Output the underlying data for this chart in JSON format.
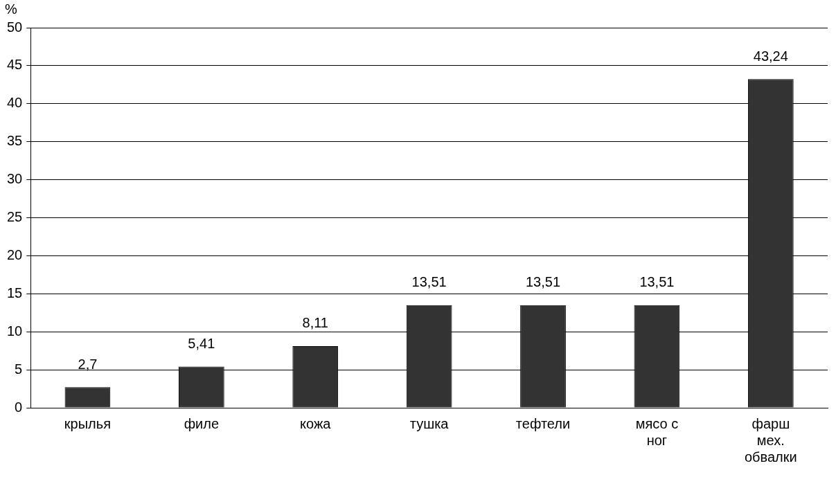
{
  "chart_data": {
    "type": "bar",
    "ylabel": "%",
    "categories": [
      "крылья",
      "филе",
      "кожа",
      "тушка",
      "тефтели",
      "мясо с ног",
      "фарш мех. обвалки"
    ],
    "values": [
      2.7,
      5.41,
      8.11,
      13.51,
      13.51,
      13.51,
      43.24
    ],
    "value_labels": [
      "2,7",
      "5,41",
      "8,11",
      "13,51",
      "13,51",
      "13,51",
      "43,24"
    ],
    "color": "#333333",
    "ylim": [
      0,
      50
    ],
    "yticks": [
      0,
      5,
      10,
      15,
      20,
      25,
      30,
      35,
      40,
      45,
      50
    ],
    "grid": "y",
    "legend": false
  }
}
